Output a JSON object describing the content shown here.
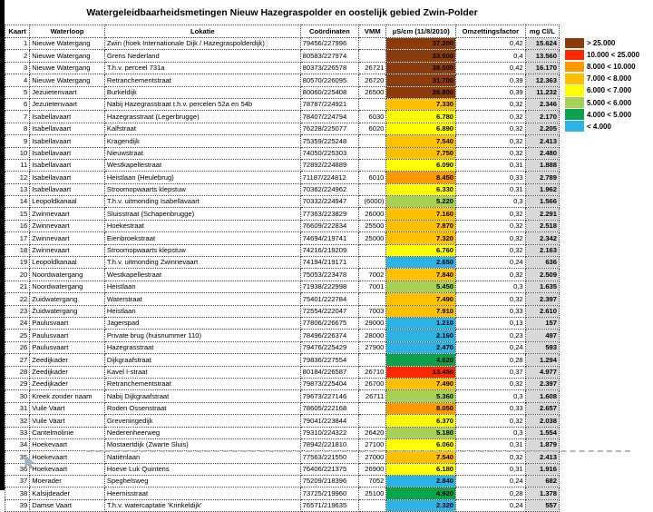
{
  "title": "Watergeleidbaarheidsmetingen Nieuw Hazegraspolder en oostelijk gebied Zwin-Polder",
  "colors": {
    "gt25": "#8C3B0D",
    "r10_25": "#FE2800",
    "o8_10": "#FF9900",
    "a7_8": "#FFC000",
    "y6_7": "#FFFF00",
    "lg5_6": "#A6D155",
    "g4_5": "#0CA24C",
    "lt4": "#2BB3E6",
    "mgcl_bg": "#D9D9D9"
  },
  "table": {
    "columns": [
      "Kaart",
      "Waterloop",
      "Lokatie",
      "Coördinaten",
      "VMM",
      "µS/cm (11/8/2010)",
      "Omzettingsfactor",
      "mg Cl/L"
    ],
    "rows": [
      {
        "kaart": "1",
        "waterloop": "Nieuwe Watergang",
        "lokatie": "Zwin (hoek Internationale Dijk / Hazegraspolderdijk)",
        "coord": "79456/227996",
        "vmm": "",
        "us": "37.200",
        "band": "gt25",
        "factor": "0,42",
        "mgcl": "15.624"
      },
      {
        "kaart": "2",
        "waterloop": "Nieuwe Watergang",
        "lokatie": "Grens Nederland",
        "coord": "80583/227974",
        "vmm": "",
        "us": "33.900",
        "band": "gt25",
        "factor": "0,4",
        "mgcl": "13.560"
      },
      {
        "kaart": "3",
        "waterloop": "Nieuwe Watergang",
        "lokatie": "T.h.v. perceel 731a",
        "coord": "80373/226578",
        "vmm": "26721",
        "us": "38.500",
        "band": "gt25",
        "factor": "0,42",
        "mgcl": "16.170"
      },
      {
        "kaart": "4",
        "waterloop": "Nieuwe Watergang",
        "lokatie": "Retranchementstraat",
        "coord": "80570/226095",
        "vmm": "26720",
        "us": "31.700",
        "band": "gt25",
        "factor": "0,39",
        "mgcl": "12.363"
      },
      {
        "kaart": "5",
        "waterloop": "Jezuietenvaart",
        "lokatie": "Burkeldijk",
        "coord": "80060/225408",
        "vmm": "26500",
        "us": "28.800",
        "band": "gt25",
        "factor": "0,39",
        "mgcl": "11.232"
      },
      {
        "kaart": "6",
        "waterloop": "Jezuïetenvaart",
        "lokatie": "Nabij Hazegrasstraat t.h.v. percelen 52a en 54b",
        "coord": "78787/224921",
        "vmm": "",
        "us": "7.330",
        "band": "a7_8",
        "factor": "0,32",
        "mgcl": "2.346"
      },
      {
        "kaart": "7",
        "waterloop": "Isabellavaart",
        "lokatie": "Hazegrasstraat (Legerbrugge)",
        "coord": "78407/224794",
        "vmm": "6030",
        "us": "6.780",
        "band": "y6_7",
        "factor": "0,32",
        "mgcl": "2.170"
      },
      {
        "kaart": "8",
        "waterloop": "Isabellavaart",
        "lokatie": "Kalfstraat",
        "coord": "76228/225077",
        "vmm": "6020",
        "us": "6.890",
        "band": "y6_7",
        "factor": "0,32",
        "mgcl": "2.205"
      },
      {
        "kaart": "9",
        "waterloop": "Isabellavaart",
        "lokatie": "Kragendijk",
        "coord": "75359/225248",
        "vmm": "",
        "us": "7.540",
        "band": "a7_8",
        "factor": "0,32",
        "mgcl": "2.413"
      },
      {
        "kaart": "10",
        "waterloop": "Isabellavaart",
        "lokatie": "Nieuwstraat",
        "coord": "74050/225303",
        "vmm": "",
        "us": "7.750",
        "band": "a7_8",
        "factor": "0,32",
        "mgcl": "2.480"
      },
      {
        "kaart": "11",
        "waterloop": "Isabellavaart",
        "lokatie": "Westkapellestraat",
        "coord": "72892/224889",
        "vmm": "",
        "us": "6.090",
        "band": "y6_7",
        "factor": "0,31",
        "mgcl": "1.888"
      },
      {
        "kaart": "12",
        "waterloop": "Isabellavaart",
        "lokatie": "Heistlaan (Heulebrug)",
        "coord": "71187/224812",
        "vmm": "6010",
        "us": "8.450",
        "band": "o8_10",
        "factor": "0,33",
        "mgcl": "2.789"
      },
      {
        "kaart": "13",
        "waterloop": "Isabellavaart",
        "lokatie": "Stroomopwaarts klepstuw",
        "coord": "70362/224962",
        "vmm": "",
        "us": "6.330",
        "band": "y6_7",
        "factor": "0,31",
        "mgcl": "1.962"
      },
      {
        "kaart": "14",
        "waterloop": "Leopoldkanaal",
        "lokatie": "T.h.v. uitmonding Isabellavaart",
        "coord": "70332/224947",
        "vmm": "(6000)",
        "us": "5.220",
        "band": "lg5_6",
        "factor": "0,3",
        "mgcl": "1.566"
      },
      {
        "kaart": "15",
        "waterloop": "Zwinnevaart",
        "lokatie": "Sluisstraat (Schapenbrugge)",
        "coord": "77363/223829",
        "vmm": "26000",
        "us": "7.160",
        "band": "a7_8",
        "factor": "0,32",
        "mgcl": "2.291"
      },
      {
        "kaart": "16",
        "waterloop": "Zwinnevaart",
        "lokatie": "Hoekestraat",
        "coord": "76609/222834",
        "vmm": "25500",
        "us": "7.870",
        "band": "a7_8",
        "factor": "0,32",
        "mgcl": "2.518"
      },
      {
        "kaart": "17",
        "waterloop": "Zwinnevaart",
        "lokatie": "Eienbroekstraat",
        "coord": "74694/219741",
        "vmm": "25000",
        "us": "7.320",
        "band": "a7_8",
        "factor": "0,32",
        "mgcl": "2.342"
      },
      {
        "kaart": "18",
        "waterloop": "Zwinnevaart",
        "lokatie": "Stroomopwaarts klepstuw",
        "coord": "74216/219209",
        "vmm": "",
        "us": "6.760",
        "band": "y6_7",
        "factor": "0,32",
        "mgcl": "2.163"
      },
      {
        "kaart": "19",
        "waterloop": "Leopoldkanaal",
        "lokatie": "T.h.v. uitmonding Zwinnevaart",
        "coord": "74194/219171",
        "vmm": "",
        "us": "2.650",
        "band": "lt4",
        "factor": "0,24",
        "mgcl": "636"
      },
      {
        "kaart": "20",
        "waterloop": "Noordwatergang",
        "lokatie": "Westkapellestraat",
        "coord": "75053/223478",
        "vmm": "7002",
        "us": "7.840",
        "band": "a7_8",
        "factor": "0,32",
        "mgcl": "2.509"
      },
      {
        "kaart": "21",
        "waterloop": "Noordwatergang",
        "lokatie": "Heistlaan",
        "coord": "71938/222998",
        "vmm": "7001",
        "us": "5.450",
        "band": "lg5_6",
        "factor": "0,3",
        "mgcl": "1.635"
      },
      {
        "kaart": "22",
        "waterloop": "Zuidwatergang",
        "lokatie": "Waterstraat",
        "coord": "75401/222784",
        "vmm": "",
        "us": "7.490",
        "band": "a7_8",
        "factor": "0,32",
        "mgcl": "2.397"
      },
      {
        "kaart": "23",
        "waterloop": "Zuidwatergang",
        "lokatie": "Heistlaan",
        "coord": "72554/222047",
        "vmm": "7003",
        "us": "7.910",
        "band": "a7_8",
        "factor": "0,33",
        "mgcl": "2.610"
      },
      {
        "kaart": "24",
        "waterloop": "Paulusvaart",
        "lokatie": "Jagerspad",
        "coord": "77806/226675",
        "vmm": "29000",
        "us": "1.210",
        "band": "lt4",
        "factor": "0,13",
        "mgcl": "157"
      },
      {
        "kaart": "25",
        "waterloop": "Paulusvaart",
        "lokatie": "Private brug (huisnummer 110)",
        "coord": "78496/226374",
        "vmm": "28000",
        "us": "2.160",
        "band": "lt4",
        "factor": "0,23",
        "mgcl": "497"
      },
      {
        "kaart": "26",
        "waterloop": "Paulusvaart",
        "lokatie": "Hazegrasstraat",
        "coord": "79476/225429",
        "vmm": "27900",
        "us": "2.470",
        "band": "lt4",
        "factor": "0,24",
        "mgcl": "593"
      },
      {
        "kaart": "27",
        "waterloop": "Zeedijkader",
        "lokatie": "Dijkgraafstraat",
        "coord": "79836/227554",
        "vmm": "",
        "us": "4.620",
        "band": "g4_5",
        "factor": "0,28",
        "mgcl": "1.294"
      },
      {
        "kaart": "28",
        "waterloop": "Zeedijkader",
        "lokatie": "Kavel I-straat",
        "coord": "80184/226587",
        "vmm": "26710",
        "us": "13.450",
        "band": "r10_25",
        "factor": "0,37",
        "mgcl": "4.977"
      },
      {
        "kaart": "29",
        "waterloop": "Zeedijkader",
        "lokatie": "Retranchementstraat",
        "coord": "79873/225404",
        "vmm": "26700",
        "us": "7.490",
        "band": "a7_8",
        "factor": "0,32",
        "mgcl": "2.397"
      },
      {
        "kaart": "30",
        "waterloop": "Kreek zonder naam",
        "lokatie": "Nabij Dijkgraafstraat",
        "coord": "79673/227146",
        "vmm": "26711",
        "us": "5.360",
        "band": "lg5_6",
        "factor": "0,3",
        "mgcl": "1.608"
      },
      {
        "kaart": "31",
        "waterloop": "Vuile Vaart",
        "lokatie": "Roden Ossenstraat",
        "coord": "78605/222168",
        "vmm": "",
        "us": "8.050",
        "band": "o8_10",
        "factor": "0,33",
        "mgcl": "2.657"
      },
      {
        "kaart": "32",
        "waterloop": "Vuile Vaart",
        "lokatie": "Greveningedijk",
        "coord": "79041/223844",
        "vmm": "",
        "us": "6.370",
        "band": "y6_7",
        "factor": "0,32",
        "mgcl": "2.038"
      },
      {
        "kaart": "33",
        "waterloop": "Cantelmolinie",
        "lokatie": "Nederenheerweg",
        "coord": "79310/224322",
        "vmm": "26420",
        "us": "5.180",
        "band": "lg5_6",
        "factor": "0,3",
        "mgcl": "1.554"
      },
      {
        "kaart": "34",
        "waterloop": "Hoekevaart",
        "lokatie": "Mostaertdijk (Zwarte Sluis)",
        "coord": "78942/221810",
        "vmm": "27100",
        "us": "6.060",
        "band": "y6_7",
        "factor": "0,31",
        "mgcl": "1.879"
      },
      {
        "kaart": "35",
        "waterloop": "Hoekevaart",
        "lokatie": "Natiënlaan",
        "coord": "77563/221550",
        "vmm": "27000",
        "us": "7.540",
        "band": "a7_8",
        "factor": "0,32",
        "mgcl": "2.413"
      },
      {
        "kaart": "36",
        "waterloop": "Hoekevaart",
        "lokatie": "Hoeve Luk Quintens",
        "coord": "76406/221375",
        "vmm": "26900",
        "us": "6.180",
        "band": "y6_7",
        "factor": "0,31",
        "mgcl": "1.916"
      },
      {
        "kaart": "37",
        "waterloop": "Moerader",
        "lokatie": "Speghelsweg",
        "coord": "75209/218396",
        "vmm": "7052",
        "us": "2.840",
        "band": "lt4",
        "factor": "0,24",
        "mgcl": "682"
      },
      {
        "kaart": "38",
        "waterloop": "Kalsijdeader",
        "lokatie": "Heernisstraat",
        "coord": "73725/219960",
        "vmm": "25100",
        "us": "4.920",
        "band": "g4_5",
        "factor": "0,28",
        "mgcl": "1.378"
      },
      {
        "kaart": "39",
        "waterloop": "Damse Vaart",
        "lokatie": "T.h.v. watercaptatie 'Krinkeldijk'",
        "coord": "76571/219635",
        "vmm": "",
        "us": "2.320",
        "band": "lt4",
        "factor": "0,24",
        "mgcl": "557"
      }
    ]
  },
  "legend": {
    "items": [
      {
        "label": "> 25.000",
        "band": "gt25"
      },
      {
        "label": "10.000 < 25.000",
        "band": "r10_25"
      },
      {
        "label": "8.000 < 10.000",
        "band": "o8_10"
      },
      {
        "label": "7.000 < 8.000",
        "band": "a7_8"
      },
      {
        "label": "6.000 < 7.000",
        "band": "y6_7"
      },
      {
        "label": "5.000 < 6.000",
        "band": "lg5_6"
      },
      {
        "label": "4.000 < 5.000",
        "band": "g4_5"
      },
      {
        "label": "< 4.000",
        "band": "lt4"
      }
    ]
  }
}
